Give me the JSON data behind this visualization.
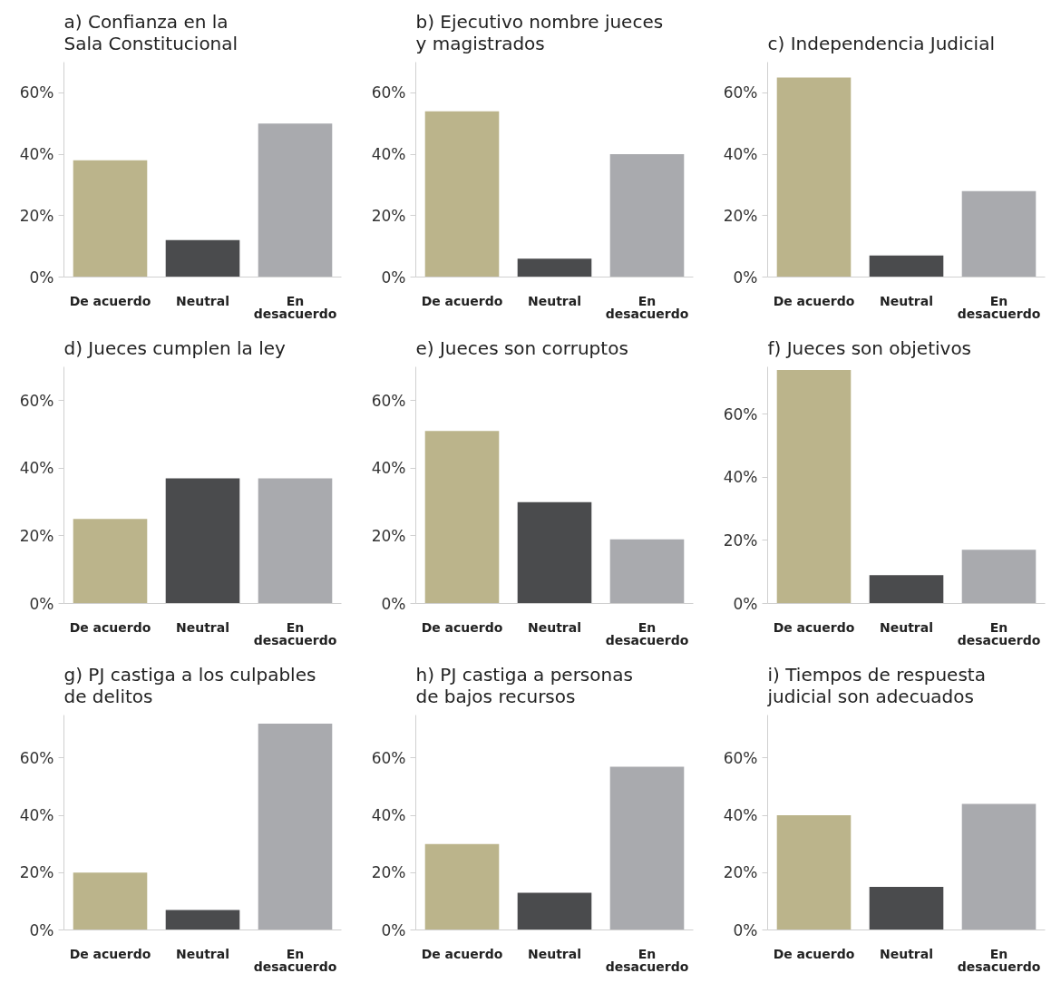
{
  "chart_data": [
    {
      "type": "bar",
      "title": "a) Confianza en la\n   Sala Constitucional",
      "categories": [
        "De acuerdo",
        "Neutral",
        "En\ndesacuerdo"
      ],
      "values": [
        38,
        12,
        50
      ],
      "colors": [
        "#bbb48b",
        "#4a4b4d",
        "#a9aaae"
      ],
      "ylim": [
        0,
        70
      ],
      "yticks": [
        {
          "value": 0,
          "label": "0%"
        },
        {
          "value": 20,
          "label": "20%"
        },
        {
          "value": 40,
          "label": "40%"
        },
        {
          "value": 60,
          "label": "60%"
        }
      ],
      "grid": false
    },
    {
      "type": "bar",
      "title": "b) Ejecutivo nombre jueces\n   y magistrados",
      "categories": [
        "De acuerdo",
        "Neutral",
        "En\ndesacuerdo"
      ],
      "values": [
        54,
        6,
        40
      ],
      "colors": [
        "#bbb48b",
        "#4a4b4d",
        "#a9aaae"
      ],
      "ylim": [
        0,
        70
      ],
      "yticks": [
        {
          "value": 0,
          "label": "0%"
        },
        {
          "value": 20,
          "label": "20%"
        },
        {
          "value": 40,
          "label": "40%"
        },
        {
          "value": 60,
          "label": "60%"
        }
      ],
      "grid": false
    },
    {
      "type": "bar",
      "title": "c) Independencia Judicial",
      "categories": [
        "De acuerdo",
        "Neutral",
        "En\ndesacuerdo"
      ],
      "values": [
        65,
        7,
        28
      ],
      "colors": [
        "#bbb48b",
        "#4a4b4d",
        "#a9aaae"
      ],
      "ylim": [
        0,
        70
      ],
      "yticks": [
        {
          "value": 0,
          "label": "0%"
        },
        {
          "value": 20,
          "label": "20%"
        },
        {
          "value": 40,
          "label": "40%"
        },
        {
          "value": 60,
          "label": "60%"
        }
      ],
      "grid": false
    },
    {
      "type": "bar",
      "title": "d) Jueces cumplen la ley",
      "categories": [
        "De acuerdo",
        "Neutral",
        "En\ndesacuerdo"
      ],
      "values": [
        25,
        37,
        37
      ],
      "colors": [
        "#bbb48b",
        "#4a4b4d",
        "#a9aaae"
      ],
      "ylim": [
        0,
        70
      ],
      "yticks": [
        {
          "value": 0,
          "label": "0%"
        },
        {
          "value": 20,
          "label": "20%"
        },
        {
          "value": 40,
          "label": "40%"
        },
        {
          "value": 60,
          "label": "60%"
        }
      ],
      "grid": false
    },
    {
      "type": "bar",
      "title": "e) Jueces son corruptos",
      "categories": [
        "De acuerdo",
        "Neutral",
        "En\ndesacuerdo"
      ],
      "values": [
        51,
        30,
        19
      ],
      "colors": [
        "#bbb48b",
        "#4a4b4d",
        "#a9aaae"
      ],
      "ylim": [
        0,
        70
      ],
      "yticks": [
        {
          "value": 0,
          "label": "0%"
        },
        {
          "value": 20,
          "label": "20%"
        },
        {
          "value": 40,
          "label": "40%"
        },
        {
          "value": 60,
          "label": "60%"
        }
      ],
      "grid": false
    },
    {
      "type": "bar",
      "title": "f) Jueces son objetivos",
      "categories": [
        "De acuerdo",
        "Neutral",
        "En\ndesacuerdo"
      ],
      "values": [
        74,
        9,
        17
      ],
      "colors": [
        "#bbb48b",
        "#4a4b4d",
        "#a9aaae"
      ],
      "ylim": [
        0,
        75
      ],
      "yticks": [
        {
          "value": 0,
          "label": "0%"
        },
        {
          "value": 20,
          "label": "20%"
        },
        {
          "value": 40,
          "label": "40%"
        },
        {
          "value": 60,
          "label": "60%"
        }
      ],
      "grid": false
    },
    {
      "type": "bar",
      "title": "g) PJ castiga a los culpables\n   de delitos",
      "categories": [
        "De acuerdo",
        "Neutral",
        "En\ndesacuerdo"
      ],
      "values": [
        20,
        7,
        72
      ],
      "colors": [
        "#bbb48b",
        "#4a4b4d",
        "#a9aaae"
      ],
      "ylim": [
        0,
        75
      ],
      "yticks": [
        {
          "value": 0,
          "label": "0%"
        },
        {
          "value": 20,
          "label": "20%"
        },
        {
          "value": 40,
          "label": "40%"
        },
        {
          "value": 60,
          "label": "60%"
        }
      ],
      "grid": false
    },
    {
      "type": "bar",
      "title": "h) PJ castiga a personas\n   de bajos recursos",
      "categories": [
        "De acuerdo",
        "Neutral",
        "En\ndesacuerdo"
      ],
      "values": [
        30,
        13,
        57
      ],
      "colors": [
        "#bbb48b",
        "#4a4b4d",
        "#a9aaae"
      ],
      "ylim": [
        0,
        75
      ],
      "yticks": [
        {
          "value": 0,
          "label": "0%"
        },
        {
          "value": 20,
          "label": "20%"
        },
        {
          "value": 40,
          "label": "40%"
        },
        {
          "value": 60,
          "label": "60%"
        }
      ],
      "grid": false
    },
    {
      "type": "bar",
      "title": "i) Tiempos de respuesta\n   judicial son adecuados",
      "categories": [
        "De acuerdo",
        "Neutral",
        "En\ndesacuerdo"
      ],
      "values": [
        40,
        15,
        44
      ],
      "colors": [
        "#bbb48b",
        "#4a4b4d",
        "#a9aaae"
      ],
      "ylim": [
        0,
        75
      ],
      "yticks": [
        {
          "value": 0,
          "label": "0%"
        },
        {
          "value": 20,
          "label": "20%"
        },
        {
          "value": 40,
          "label": "40%"
        },
        {
          "value": 60,
          "label": "60%"
        }
      ],
      "grid": false
    }
  ]
}
